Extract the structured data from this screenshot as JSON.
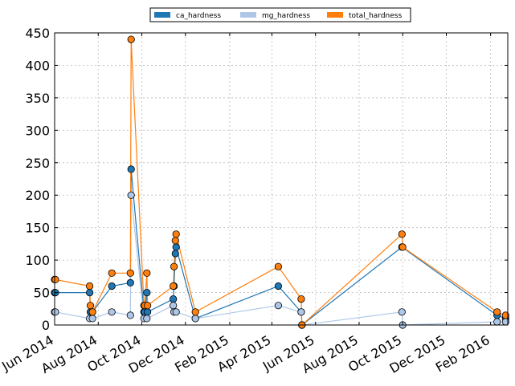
{
  "chart_data": {
    "type": "line",
    "x_type": "date",
    "xlim": [
      "2014-06-01",
      "2016-02-25"
    ],
    "ylim": [
      0,
      450
    ],
    "yticks": [
      0,
      50,
      100,
      150,
      200,
      250,
      300,
      350,
      400,
      450
    ],
    "xticks": [
      {
        "date": "2014-06-01",
        "label": "Jun 2014"
      },
      {
        "date": "2014-08-01",
        "label": "Aug 2014"
      },
      {
        "date": "2014-10-01",
        "label": "Oct 2014"
      },
      {
        "date": "2014-12-01",
        "label": "Dec 2014"
      },
      {
        "date": "2015-02-01",
        "label": "Feb 2015"
      },
      {
        "date": "2015-04-01",
        "label": "Apr 2015"
      },
      {
        "date": "2015-06-01",
        "label": "Jun 2015"
      },
      {
        "date": "2015-08-01",
        "label": "Aug 2015"
      },
      {
        "date": "2015-10-01",
        "label": "Oct 2015"
      },
      {
        "date": "2015-12-01",
        "label": "Dec 2015"
      },
      {
        "date": "2016-02-01",
        "label": "Feb 2016"
      }
    ],
    "grid": true,
    "legend_position": "top-center",
    "series": [
      {
        "name": "ca_hardness",
        "color": "#1f77b4",
        "points": [
          [
            "2014-06-01",
            50
          ],
          [
            "2014-06-02",
            50
          ],
          [
            "2014-07-20",
            50
          ],
          [
            "2014-07-21",
            20
          ],
          [
            "2014-07-24",
            20
          ],
          [
            "2014-08-20",
            60
          ],
          [
            "2014-09-15",
            65
          ],
          [
            "2014-09-16",
            240
          ],
          [
            "2014-10-04",
            20
          ],
          [
            "2014-10-05",
            20
          ],
          [
            "2014-10-08",
            50
          ],
          [
            "2014-10-09",
            20
          ],
          [
            "2014-11-14",
            40
          ],
          [
            "2014-11-15",
            60
          ],
          [
            "2014-11-17",
            110
          ],
          [
            "2014-11-18",
            120
          ],
          [
            "2014-12-15",
            10
          ],
          [
            "2015-04-10",
            60
          ],
          [
            "2015-05-12",
            20
          ],
          [
            "2015-05-13",
            0
          ],
          [
            "2015-09-30",
            120
          ],
          [
            "2016-02-10",
            15
          ],
          [
            "2016-02-22",
            10
          ]
        ]
      },
      {
        "name": "mg_hardness",
        "color": "#aec7e8",
        "points": [
          [
            "2014-06-01",
            20
          ],
          [
            "2014-06-02",
            20
          ],
          [
            "2014-07-20",
            10
          ],
          [
            "2014-07-24",
            10
          ],
          [
            "2014-08-20",
            20
          ],
          [
            "2014-09-15",
            15
          ],
          [
            "2014-09-16",
            200
          ],
          [
            "2014-10-04",
            10
          ],
          [
            "2014-10-08",
            10
          ],
          [
            "2014-11-14",
            30
          ],
          [
            "2014-11-15",
            20
          ],
          [
            "2014-11-18",
            20
          ],
          [
            "2014-12-15",
            10
          ],
          [
            "2015-04-10",
            30
          ],
          [
            "2015-05-12",
            20
          ],
          [
            "2015-05-13",
            0
          ],
          [
            "2015-09-30",
            20
          ],
          [
            "2015-10-01",
            0
          ],
          [
            "2016-02-10",
            5
          ],
          [
            "2016-02-22",
            5
          ]
        ]
      },
      {
        "name": "total_hardness",
        "color": "#ff7f0e",
        "points": [
          [
            "2014-06-01",
            70
          ],
          [
            "2014-06-02",
            70
          ],
          [
            "2014-07-20",
            60
          ],
          [
            "2014-07-21",
            30
          ],
          [
            "2014-07-24",
            20
          ],
          [
            "2014-08-20",
            80
          ],
          [
            "2014-09-15",
            80
          ],
          [
            "2014-09-16",
            440
          ],
          [
            "2014-10-04",
            30
          ],
          [
            "2014-10-05",
            30
          ],
          [
            "2014-10-08",
            80
          ],
          [
            "2014-10-09",
            30
          ],
          [
            "2014-11-14",
            60
          ],
          [
            "2014-11-15",
            90
          ],
          [
            "2014-11-17",
            130
          ],
          [
            "2014-11-18",
            140
          ],
          [
            "2014-12-15",
            20
          ],
          [
            "2015-04-10",
            90
          ],
          [
            "2015-05-12",
            40
          ],
          [
            "2015-05-13",
            0
          ],
          [
            "2015-09-30",
            140
          ],
          [
            "2015-10-01",
            120
          ],
          [
            "2016-02-10",
            20
          ],
          [
            "2016-02-22",
            15
          ]
        ]
      }
    ]
  }
}
